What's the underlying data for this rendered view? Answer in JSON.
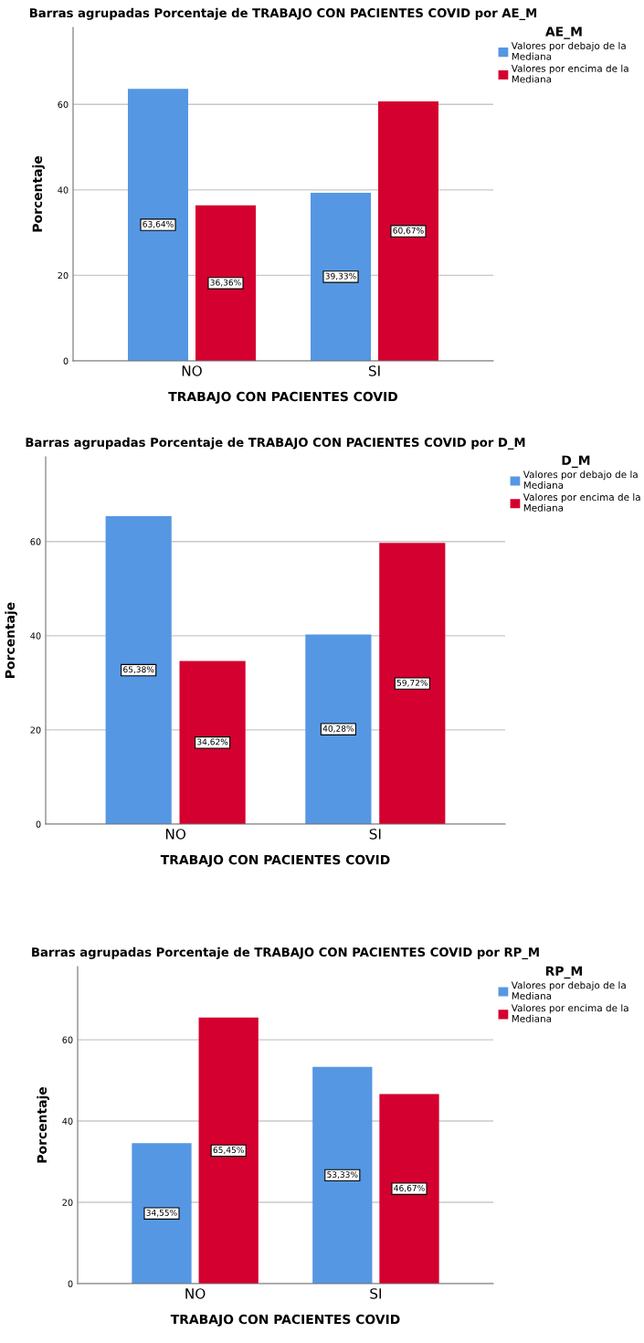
{
  "chart_data": [
    {
      "type": "bar",
      "title": "Barras agrupadas Porcentaje de TRABAJO CON PACIENTES COVID por AE_M",
      "xlabel": "TRABAJO CON PACIENTES COVID",
      "ylabel": "Porcentaje",
      "legend_title": "AE_M",
      "categories": [
        "NO",
        "SI"
      ],
      "series": [
        {
          "name": "Valores por debajo de la Mediana",
          "color": "#5597e3",
          "values": [
            63.64,
            39.33
          ],
          "value_labels": [
            "63,64%",
            "39,33%"
          ]
        },
        {
          "name": "Valores por encima de la Mediana",
          "color": "#d4002f",
          "values": [
            36.36,
            60.67
          ],
          "value_labels": [
            "36,36%",
            "60,67%"
          ]
        }
      ],
      "ylim": [
        0,
        78
      ],
      "yticks": [
        0,
        20,
        40,
        60
      ],
      "grid": "y",
      "legend": "top right"
    },
    {
      "type": "bar",
      "title": "Barras agrupadas Porcentaje de TRABAJO CON PACIENTES COVID por D_M",
      "xlabel": "TRABAJO CON PACIENTES COVID",
      "ylabel": "Porcentaje",
      "legend_title": "D_M",
      "categories": [
        "NO",
        "SI"
      ],
      "series": [
        {
          "name": "Valores por debajo de la Mediana",
          "color": "#5597e3",
          "values": [
            65.38,
            40.28
          ],
          "value_labels": [
            "65,38%",
            "40,28%"
          ]
        },
        {
          "name": "Valores por encima de la Mediana",
          "color": "#d4002f",
          "values": [
            34.62,
            59.72
          ],
          "value_labels": [
            "34,62%",
            "59,72%"
          ]
        }
      ],
      "ylim": [
        0,
        78
      ],
      "yticks": [
        0,
        20,
        40,
        60
      ],
      "grid": "y",
      "legend": "top right"
    },
    {
      "type": "bar",
      "title": "Barras agrupadas Porcentaje de TRABAJO CON PACIENTES COVID por RP_M",
      "xlabel": "TRABAJO CON PACIENTES COVID",
      "ylabel": "Porcentaje",
      "legend_title": "RP_M",
      "categories": [
        "NO",
        "SI"
      ],
      "series": [
        {
          "name": "Valores por debajo de la Mediana",
          "color": "#5597e3",
          "values": [
            34.55,
            53.33
          ],
          "value_labels": [
            "34,55%",
            "53,33%"
          ]
        },
        {
          "name": "Valores por encima de la Mediana",
          "color": "#d4002f",
          "values": [
            65.45,
            46.67
          ],
          "value_labels": [
            "65,45%",
            "46,67%"
          ]
        }
      ],
      "ylim": [
        0,
        78
      ],
      "yticks": [
        0,
        20,
        40,
        60
      ],
      "grid": "y",
      "legend": "top right"
    }
  ]
}
